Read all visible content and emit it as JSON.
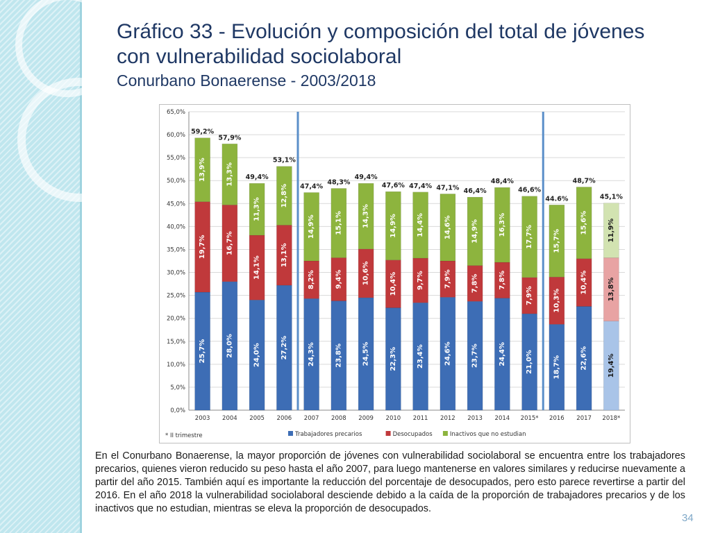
{
  "slide": {
    "title_line1": "Gráfico 33 - Evolución y composición del total de jóvenes",
    "title_line2": "con vulnerabilidad sociolaboral",
    "subtitle": "Conurbano Bonaerense - 2003/2018",
    "description": "En el Conurbano Bonaerense, la mayor proporción de jóvenes con vulnerabilidad sociolaboral se encuentra entre los trabajadores precarios, quienes vieron reducido su peso hasta el año 2007, para luego mantenerse en valores similares y reducirse nuevamente a partir del año 2015. También aquí es importante la reducción del porcentaje de desocupados, pero esto parece revertirse a partir del 2016. En el año 2018 la vulnerabilidad sociolaboral desciende debido a la caída de la proporción de trabajadores precarios y de los inactivos que no estudian, mientras se eleva la proporción de desocupados.",
    "page_number": "34"
  },
  "chart_data": {
    "type": "bar",
    "stacked": true,
    "title": "",
    "xlabel": "",
    "ylabel": "",
    "ylim": [
      0,
      65
    ],
    "yticks": [
      "0,0%",
      "5,0%",
      "10,0%",
      "15,0%",
      "20,0%",
      "25,0%",
      "30,0%",
      "35,0%",
      "40,0%",
      "45,0%",
      "50,0%",
      "55,0%",
      "60,0%",
      "65,0%"
    ],
    "categories": [
      "2003",
      "2004",
      "2005",
      "2006",
      "2007",
      "2008",
      "2009",
      "2010",
      "2011",
      "2012",
      "2013",
      "2014",
      "2015*",
      "2016",
      "2017",
      "2018*"
    ],
    "series": [
      {
        "name": "Trabajadores precarios",
        "color": "#3d6db5",
        "values": [
          25.7,
          28.0,
          24.0,
          27.2,
          24.3,
          23.8,
          24.5,
          22.3,
          23.4,
          24.6,
          23.7,
          24.4,
          21.0,
          18.7,
          22.6,
          19.4
        ],
        "labels": [
          "25,7%",
          "28,0%",
          "24,0%",
          "27,2%",
          "24,3%",
          "23,8%",
          "24,5%",
          "22,3%",
          "23,4%",
          "24,6%",
          "23,7%",
          "24,4%",
          "21,0%",
          "18,7%",
          "22,6%",
          "19,4%"
        ]
      },
      {
        "name": "Desocupados",
        "color": "#c0393b",
        "values": [
          19.7,
          16.7,
          14.1,
          13.1,
          8.2,
          9.4,
          10.6,
          10.4,
          9.7,
          7.9,
          7.8,
          7.8,
          7.9,
          10.3,
          10.4,
          13.8
        ],
        "labels": [
          "19,7%",
          "16,7%",
          "14,1%",
          "13,1%",
          "8,2%",
          "9,4%",
          "10,6%",
          "10,4%",
          "9,7%",
          "7,9%",
          "7,8%",
          "7,8%",
          "7,9%",
          "10,3%",
          "10,4%",
          "13,8%"
        ]
      },
      {
        "name": "Inactivos que no estudian",
        "color": "#8db43e",
        "values": [
          13.9,
          13.3,
          11.3,
          12.8,
          14.9,
          15.1,
          14.3,
          14.9,
          14.4,
          14.6,
          14.9,
          16.3,
          17.7,
          15.7,
          15.6,
          11.9
        ],
        "labels": [
          "13,9%",
          "13,3%",
          "11,3%",
          "12,8%",
          "14,9%",
          "15,1%",
          "14,3%",
          "14,9%",
          "14,4%",
          "14,6%",
          "14,9%",
          "16,3%",
          "17,7%",
          "15,7%",
          "15,6%",
          "11,9%"
        ]
      }
    ],
    "totals": [
      "59,2%",
      "57,9%",
      "49,4%",
      "53,1%",
      "47,4%",
      "48,3%",
      "49,4%",
      "47,6%",
      "47,4%",
      "47,1%",
      "46,4%",
      "48,4%",
      "46,6%",
      "44.6%",
      "48,7%",
      "45,1%"
    ],
    "highlight_last_category": true,
    "last_category_colors": [
      "#a9c4e8",
      "#e8a3a3",
      "#d2e3b1"
    ],
    "vertical_separators_after": [
      "2006",
      "2015*"
    ],
    "separator_color": "#5b8fc9",
    "footnote": "* II trimestre",
    "legend_position": "bottom"
  }
}
